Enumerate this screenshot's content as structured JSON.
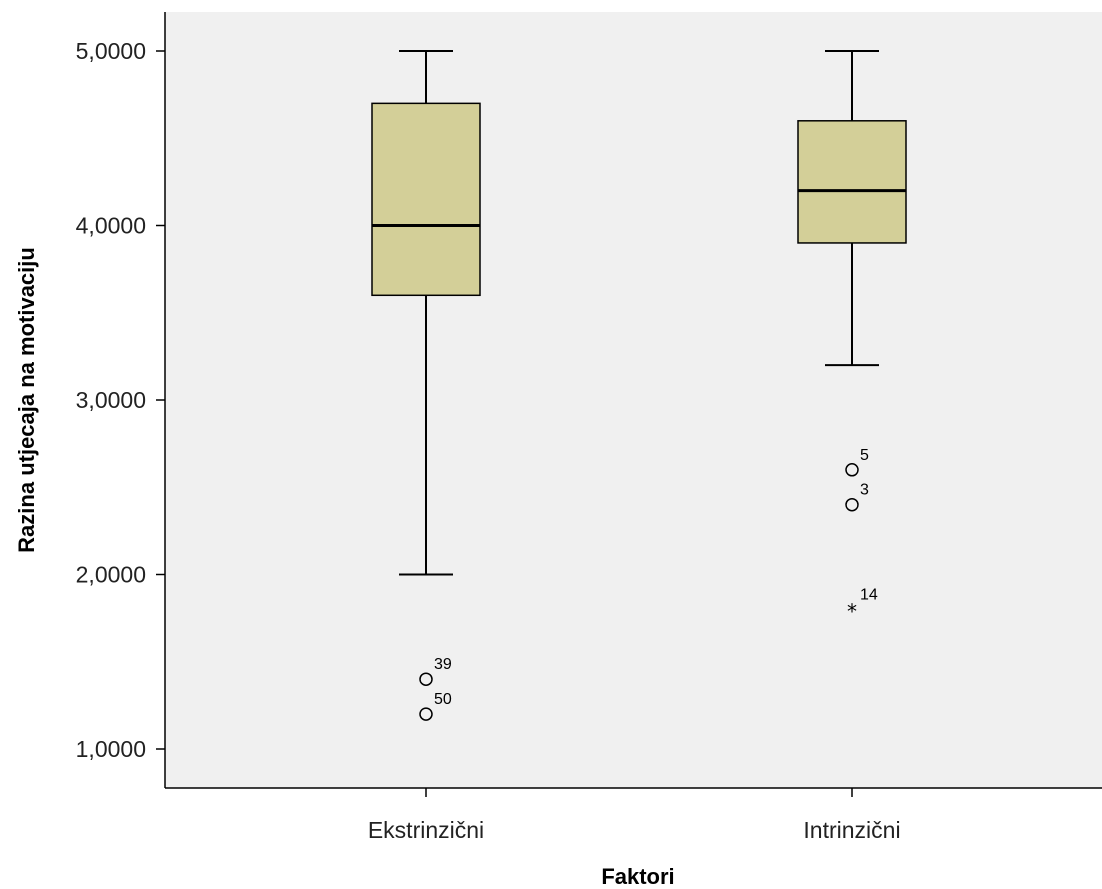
{
  "chart_data": {
    "type": "boxplot",
    "xlabel": "Faktori",
    "ylabel": "Razina utjecaja na motivaciju",
    "ylim": [
      0.8,
      5.2
    ],
    "yticks": [
      1,
      2,
      3,
      4,
      5
    ],
    "ytick_labels": [
      "1,0000",
      "2,0000",
      "3,0000",
      "4,0000",
      "5,0000"
    ],
    "categories": [
      "Ekstrinzični",
      "Intrinzični"
    ],
    "grid": false,
    "colors": {
      "plot_bg": "#f0f0f0",
      "box_fill": "#d3cf98",
      "stroke": "#000000"
    },
    "boxes": [
      {
        "category": "Ekstrinzični",
        "whisker_low": 2.0,
        "q1": 3.6,
        "median": 4.0,
        "q3": 4.7,
        "whisker_high": 5.0,
        "outliers": [
          {
            "value": 1.4,
            "label": "39",
            "marker": "circle"
          },
          {
            "value": 1.2,
            "label": "50",
            "marker": "circle"
          }
        ]
      },
      {
        "category": "Intrinzični",
        "whisker_low": 3.2,
        "q1": 3.9,
        "median": 4.2,
        "q3": 4.6,
        "whisker_high": 5.0,
        "outliers": [
          {
            "value": 2.6,
            "label": "5",
            "marker": "circle"
          },
          {
            "value": 2.4,
            "label": "3",
            "marker": "circle"
          },
          {
            "value": 1.8,
            "label": "14",
            "marker": "star"
          }
        ]
      }
    ]
  }
}
